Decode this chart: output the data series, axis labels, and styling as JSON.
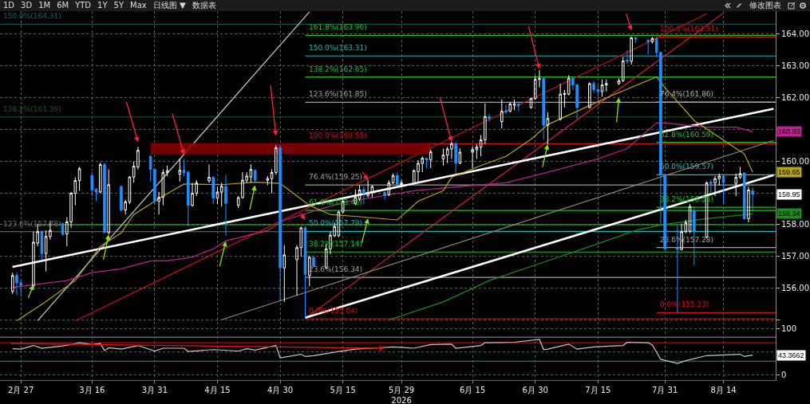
{
  "chart_data": [
    {
      "type": "other",
      "annotations": [
        "1D",
        "3D",
        "1M",
        "6M",
        "YTD",
        "1Y",
        "5Y",
        "Max",
        "日线图 ▼",
        "数据表",
        "修改图表"
      ]
    },
    {
      "type": "candlestick",
      "annotations": [
        "160.93",
        "159.65",
        "158.95",
        "158.34"
      ],
      "x": [
        "2026-02-25",
        "2026-02-26",
        "2026-02-27",
        "2026-03-02",
        "2026-03-03",
        "2026-03-04",
        "2026-03-05",
        "2026-03-06",
        "2026-03-09",
        "2026-03-10",
        "2026-03-11",
        "2026-03-12",
        "2026-03-13",
        "2026-03-16",
        "2026-03-17",
        "2026-03-18",
        "2026-03-19",
        "2026-03-20",
        "2026-03-23",
        "2026-03-24",
        "2026-03-25",
        "2026-03-26",
        "2026-03-27",
        "2026-03-30",
        "2026-03-31",
        "2026-04-01",
        "2026-04-02",
        "2026-04-03",
        "2026-04-06",
        "2026-04-07",
        "2026-04-08",
        "2026-04-09",
        "2026-04-10",
        "2026-04-13",
        "2026-04-14",
        "2026-04-15",
        "2026-04-16",
        "2026-04-17",
        "2026-04-20",
        "2026-04-21",
        "2026-04-22",
        "2026-04-23",
        "2026-04-24",
        "2026-04-27",
        "2026-04-28",
        "2026-04-29",
        "2026-04-30",
        "2026-05-01",
        "2026-05-04",
        "2026-05-05",
        "2026-05-06",
        "2026-05-07",
        "2026-05-08",
        "2026-05-11",
        "2026-05-12",
        "2026-05-13",
        "2026-05-14",
        "2026-05-15",
        "2026-05-18",
        "2026-05-19",
        "2026-05-20",
        "2026-05-21",
        "2026-05-22",
        "2026-05-25",
        "2026-05-26",
        "2026-05-27",
        "2026-05-28",
        "2026-05-29",
        "2026-06-01",
        "2026-06-02",
        "2026-06-03",
        "2026-06-04",
        "2026-06-05",
        "2026-06-08",
        "2026-06-09",
        "2026-06-10",
        "2026-06-11",
        "2026-06-12",
        "2026-06-15",
        "2026-06-16",
        "2026-06-17",
        "2026-06-18",
        "2026-06-19",
        "2026-06-22",
        "2026-06-23",
        "2026-06-24",
        "2026-06-25",
        "2026-06-26",
        "2026-06-29",
        "2026-06-30",
        "2026-07-01",
        "2026-07-02",
        "2026-07-03",
        "2026-07-06",
        "2026-07-07",
        "2026-07-08",
        "2026-07-09",
        "2026-07-10",
        "2026-07-13",
        "2026-07-14",
        "2026-07-15",
        "2026-07-16",
        "2026-07-17",
        "2026-07-20",
        "2026-07-21",
        "2026-07-22",
        "2026-07-23",
        "2026-07-24",
        "2026-07-27",
        "2026-07-28",
        "2026-07-29",
        "2026-07-30",
        "2026-07-31",
        "2026-08-03",
        "2026-08-04",
        "2026-08-05",
        "2026-08-06",
        "2026-08-07",
        "2026-08-10",
        "2026-08-11",
        "2026-08-12",
        "2026-08-13",
        "2026-08-14",
        "2026-08-17",
        "2026-08-18",
        "2026-08-19",
        "2026-08-20",
        "2026-08-21"
      ],
      "ohlc": [
        [
          155.9,
          156.49,
          155.82,
          156.4
        ],
        [
          156.4,
          156.49,
          155.78,
          156.17
        ],
        [
          156.17,
          156.24,
          155.74,
          156.09
        ],
        [
          156.07,
          157.78,
          156.03,
          157.45
        ],
        [
          157.42,
          158.03,
          157.32,
          157.78
        ],
        [
          157.78,
          157.82,
          156.9,
          157.09
        ],
        [
          157.09,
          157.82,
          156.53,
          157.63
        ],
        [
          157.63,
          158.11,
          157.53,
          157.82
        ],
        [
          158.03,
          158.07,
          157.65,
          157.7
        ],
        [
          157.71,
          158.24,
          157.32,
          158.09
        ],
        [
          158.09,
          159.03,
          157.9,
          158.99
        ],
        [
          158.99,
          159.49,
          158.61,
          159.39
        ],
        [
          159.39,
          159.82,
          159.07,
          159.76
        ],
        [
          159.55,
          159.65,
          158.9,
          159.09
        ],
        [
          159.11,
          159.15,
          158.74,
          159.03
        ],
        [
          159.03,
          159.95,
          158.99,
          159.89
        ],
        [
          159.89,
          159.95,
          157.74,
          157.75
        ],
        [
          157.75,
          159.74,
          157.7,
          159.26
        ],
        [
          159.2,
          159.24,
          158.4,
          158.46
        ],
        [
          158.46,
          158.78,
          158.32,
          158.72
        ],
        [
          158.72,
          159.53,
          158.65,
          159.5
        ],
        [
          159.5,
          159.99,
          159.32,
          159.84
        ],
        [
          159.82,
          160.45,
          159.74,
          160.34
        ],
        [
          160.15,
          160.2,
          159.36,
          159.74
        ],
        [
          159.74,
          159.78,
          158.65,
          158.74
        ],
        [
          158.74,
          159.03,
          158.32,
          158.86
        ],
        [
          158.86,
          159.74,
          158.61,
          159.64
        ],
        [
          159.64,
          159.86,
          159.53,
          159.7
        ],
        [
          159.59,
          160.07,
          159.36,
          159.71
        ],
        [
          159.71,
          160.07,
          159.53,
          159.64
        ],
        [
          159.65,
          159.7,
          157.95,
          158.61
        ],
        [
          158.61,
          159.32,
          158.57,
          158.99
        ],
        [
          158.99,
          159.4,
          158.9,
          159.32
        ],
        [
          159.38,
          159.89,
          159.32,
          159.49
        ],
        [
          159.49,
          159.53,
          158.65,
          158.84
        ],
        [
          158.84,
          159.2,
          158.65,
          159.03
        ],
        [
          159.03,
          159.32,
          158.57,
          159.21
        ],
        [
          159.21,
          159.57,
          157.65,
          158.67
        ],
        [
          158.61,
          158.9,
          158.53,
          158.85
        ],
        [
          158.85,
          159.65,
          158.82,
          159.4
        ],
        [
          159.4,
          159.65,
          159.32,
          159.53
        ],
        [
          159.5,
          159.9,
          159.32,
          159.74
        ],
        [
          159.71,
          159.74,
          159.32,
          159.4
        ],
        [
          159.4,
          159.53,
          159.24,
          159.45
        ],
        [
          159.45,
          159.74,
          158.99,
          159.64
        ],
        [
          159.64,
          160.5,
          159.57,
          160.42
        ],
        [
          160.42,
          160.5,
          155.61,
          156.64
        ],
        [
          156.64,
          157.36,
          155.57,
          157.05
        ],
        [
          156.9,
          157.36,
          155.78,
          157.28
        ],
        [
          157.28,
          157.94,
          156.99,
          157.9
        ],
        [
          157.9,
          157.94,
          155.04,
          156.44
        ],
        [
          156.4,
          157.03,
          156.07,
          156.97
        ],
        [
          156.97,
          157.03,
          156.65,
          156.7
        ],
        [
          156.64,
          157.4,
          156.61,
          157.24
        ],
        [
          157.24,
          157.78,
          157.07,
          157.67
        ],
        [
          157.65,
          158.07,
          157.61,
          157.94
        ],
        [
          157.65,
          158.44,
          157.61,
          158.4
        ],
        [
          158.4,
          158.86,
          158.36,
          158.74
        ],
        [
          158.67,
          159.11,
          158.61,
          158.86
        ],
        [
          158.82,
          159.24,
          158.74,
          159.09
        ],
        [
          159.11,
          159.2,
          158.65,
          158.99
        ],
        [
          158.92,
          159.4,
          158.86,
          159.0
        ],
        [
          159.0,
          159.24,
          158.86,
          159.2
        ],
        [
          159.01,
          159.07,
          158.78,
          158.92
        ],
        [
          158.94,
          159.4,
          158.9,
          159.32
        ],
        [
          159.32,
          159.61,
          159.28,
          159.55
        ],
        [
          159.55,
          159.65,
          159.24,
          159.28
        ],
        [
          159.26,
          159.4,
          159.17,
          159.32
        ],
        [
          159.3,
          159.74,
          159.26,
          159.7
        ],
        [
          159.67,
          160.03,
          159.32,
          159.93
        ],
        [
          159.93,
          160.15,
          159.65,
          160.09
        ],
        [
          160.09,
          160.11,
          159.78,
          160.04
        ],
        [
          160.04,
          160.36,
          159.78,
          160.29
        ],
        [
          160.07,
          160.4,
          159.86,
          160.19
        ],
        [
          160.19,
          160.45,
          159.94,
          160.38
        ],
        [
          160.38,
          160.61,
          160.07,
          160.55
        ],
        [
          160.55,
          160.59,
          159.61,
          159.94
        ],
        [
          159.94,
          160.4,
          159.9,
          160.28
        ],
        [
          160.28,
          160.45,
          159.78,
          160.36
        ],
        [
          160.36,
          160.53,
          160.07,
          160.44
        ],
        [
          160.44,
          160.82,
          160.15,
          160.67
        ],
        [
          160.67,
          161.82,
          160.53,
          161.4
        ],
        [
          161.4,
          161.48,
          161.24,
          161.34
        ],
        [
          161.24,
          161.94,
          161.03,
          161.57
        ],
        [
          161.59,
          161.78,
          161.48,
          161.55
        ],
        [
          161.57,
          161.86,
          161.53,
          161.8
        ],
        [
          161.76,
          161.94,
          161.61,
          161.8
        ],
        [
          161.8,
          161.82,
          161.57,
          161.75
        ],
        [
          161.69,
          162.0,
          161.65,
          161.97
        ],
        [
          161.97,
          162.68,
          161.92,
          162.57
        ],
        [
          162.57,
          162.86,
          162.32,
          162.6
        ],
        [
          162.6,
          162.65,
          160.69,
          161.13
        ],
        [
          161.13,
          161.54,
          160.53,
          161.34
        ],
        [
          161.32,
          162.44,
          161.28,
          162.11
        ],
        [
          162.1,
          162.24,
          161.69,
          162.13
        ],
        [
          162.11,
          162.7,
          162.07,
          162.61
        ],
        [
          162.61,
          162.65,
          162.24,
          162.4
        ],
        [
          162.4,
          162.44,
          161.32,
          161.69
        ],
        [
          161.69,
          162.48,
          161.65,
          162.44
        ],
        [
          162.44,
          162.53,
          162.15,
          162.25
        ],
        [
          162.25,
          162.4,
          161.82,
          162.19
        ],
        [
          162.19,
          162.57,
          162.03,
          162.4
        ],
        [
          162.4,
          162.57,
          162.19,
          162.44
        ],
        [
          162.44,
          162.61,
          162.4,
          162.53
        ],
        [
          162.53,
          163.28,
          162.49,
          163.15
        ],
        [
          163.18,
          163.49,
          163.07,
          163.14
        ],
        [
          163.15,
          163.91,
          163.04,
          163.88
        ],
        [
          163.88,
          163.91,
          163.73,
          163.84
        ],
        [
          163.8,
          163.84,
          163.36,
          163.76
        ],
        [
          163.76,
          163.9,
          163.7,
          163.86
        ],
        [
          163.86,
          163.9,
          163.28,
          163.42
        ],
        [
          163.42,
          163.44,
          158.03,
          159.57
        ],
        [
          159.57,
          159.6,
          157.22,
          157.23
        ],
        [
          157.27,
          157.97,
          155.23,
          157.22
        ],
        [
          157.22,
          158.03,
          157.19,
          157.78
        ],
        [
          157.78,
          158.15,
          157.73,
          158.07
        ],
        [
          157.8,
          158.65,
          157.73,
          158.57
        ],
        [
          158.44,
          158.57,
          156.73,
          157.8
        ],
        [
          157.61,
          159.36,
          157.57,
          159.32
        ],
        [
          159.34,
          159.4,
          158.99,
          159.3
        ],
        [
          159.32,
          159.53,
          158.9,
          159.45
        ],
        [
          159.45,
          159.61,
          159.24,
          159.53
        ],
        [
          159.53,
          159.57,
          158.65,
          159.32
        ],
        [
          159.3,
          159.61,
          158.9,
          159.49
        ],
        [
          159.49,
          159.82,
          159.44,
          159.61
        ],
        [
          159.63,
          159.65,
          158.15,
          158.19
        ],
        [
          158.19,
          159.2,
          158.07,
          159.09
        ],
        [
          159.07,
          159.17,
          158.4,
          158.95
        ]
      ],
      "colors": [
        "#ffffff",
        "#1e90ff",
        "#1e90ff",
        "#ffffff",
        "#ffffff",
        "#1e90ff",
        "#ffffff",
        "#ffffff",
        "#1e90ff",
        "#ffffff",
        "#ffffff",
        "#ffffff",
        "#ffffff",
        "#1e90ff",
        "#1e90ff",
        "#ffffff",
        "#1e90ff",
        "#ffffff",
        "#1e90ff",
        "#ffffff",
        "#ffffff",
        "#ffffff",
        "#ffffff",
        "#1e90ff",
        "#1e90ff",
        "#ffffff",
        "#ffffff",
        "#ffffff",
        "#ffffff",
        "#1e90ff",
        "#1e90ff",
        "#ffffff",
        "#ffffff",
        "#ffffff",
        "#1e90ff",
        "#ffffff",
        "#ffffff",
        "#1e90ff",
        "#ffffff",
        "#ffffff",
        "#ffffff",
        "#ffffff",
        "#1e90ff",
        "#ffffff",
        "#ffffff",
        "#ffffff",
        "#1e90ff",
        "#ffffff",
        "#ffffff",
        "#ffffff",
        "#1e90ff",
        "#ffffff",
        "#1e90ff",
        "#ffffff",
        "#ffffff",
        "#ffffff",
        "#ffffff",
        "#ffffff",
        "#ffffff",
        "#ffffff",
        "#1e90ff",
        "#ffffff",
        "#ffffff",
        "#1e90ff",
        "#ffffff",
        "#ffffff",
        "#1e90ff",
        "#ffffff",
        "#ffffff",
        "#ffffff",
        "#ffffff",
        "#1e90ff",
        "#ffffff",
        "#ffffff",
        "#ffffff",
        "#ffffff",
        "#1e90ff",
        "#ffffff",
        "#ffffff",
        "#ffffff",
        "#ffffff",
        "#ffffff",
        "#1e90ff",
        "#ffffff",
        "#1e90ff",
        "#ffffff",
        "#ffffff",
        "#1e90ff",
        "#ffffff",
        "#ffffff",
        "#ffffff",
        "#1e90ff",
        "#ffffff",
        "#ffffff",
        "#ffffff",
        "#ffffff",
        "#1e90ff",
        "#1e90ff",
        "#ffffff",
        "#1e90ff",
        "#1e90ff",
        "#ffffff",
        "#ffffff",
        "#ffffff",
        "#ffffff",
        "#1e90ff",
        "#ffffff",
        "#1e90ff",
        "#1e90ff",
        "#ffffff",
        "#1e90ff",
        "#1e90ff",
        "#1e90ff",
        "#1e90ff",
        "#ffffff",
        "#ffffff",
        "#ffffff",
        "#1e90ff",
        "#ffffff",
        "#1e90ff",
        "#ffffff",
        "#ffffff",
        "#1e90ff",
        "#ffffff",
        "#ffffff",
        "#1e90ff",
        "#ffffff",
        "#1e90ff"
      ],
      "series": [
        {
          "type": "line",
          "color": "#8b0000",
          "x": [
            "2026-03-30",
            "2026-06-05"
          ],
          "values": [
            160.55,
            160.55
          ],
          "lower": [
            160.22,
            160.22
          ],
          "upper": [
            160.55,
            160.55
          ]
        },
        {
          "type": "line",
          "color": "#b5a41a",
          "x": [
            "2026-02-26",
            "2026-03-04",
            "2026-03-12",
            "2026-03-18",
            "2026-03-23",
            "2026-03-26",
            "2026-04-02",
            "2026-04-07",
            "2026-04-16",
            "2026-04-24",
            "2026-04-30",
            "2026-05-04",
            "2026-05-07",
            "2026-05-12",
            "2026-05-19",
            "2026-05-28",
            "2026-06-02",
            "2026-06-08",
            "2026-06-10",
            "2026-06-17",
            "2026-06-23",
            "2026-06-29",
            "2026-07-03",
            "2026-07-17",
            "2026-07-29",
            "2026-07-31",
            "2026-08-07",
            "2026-08-17",
            "2026-08-19",
            "2026-08-21"
          ],
          "values": [
            154.98,
            155.49,
            156.24,
            157.32,
            157.74,
            158.32,
            158.9,
            159.28,
            159.26,
            159.34,
            159.3,
            158.9,
            158.61,
            158.32,
            158.25,
            158.15,
            158.74,
            159.07,
            159.49,
            159.86,
            160.15,
            160.69,
            161.15,
            161.99,
            162.65,
            162.32,
            161.28,
            160.4,
            160.23,
            159.65
          ]
        },
        {
          "type": "line",
          "color": "#c0208f",
          "x": [
            "2026-02-25",
            "2026-03-10",
            "2026-03-16",
            "2026-03-23",
            "2026-03-30",
            "2026-04-03",
            "2026-04-09",
            "2026-04-14",
            "2026-04-17",
            "2026-04-27",
            "2026-05-01",
            "2026-05-15",
            "2026-06-01",
            "2026-06-12",
            "2026-06-23",
            "2026-07-03",
            "2026-07-15",
            "2026-07-22",
            "2026-07-29",
            "2026-07-31",
            "2026-08-10",
            "2026-08-17",
            "2026-08-21"
          ],
          "values": [
            156.03,
            156.24,
            156.49,
            156.61,
            156.86,
            156.86,
            156.98,
            157.24,
            157.49,
            157.82,
            158.15,
            158.7,
            159.07,
            159.2,
            159.32,
            159.65,
            160.07,
            160.4,
            161.2,
            161.2,
            161.07,
            161.07,
            160.93
          ]
        },
        {
          "type": "line",
          "color": "#1e8b1e",
          "x": [
            "2026-05-26",
            "2026-06-08",
            "2026-06-19",
            "2026-07-02",
            "2026-07-15",
            "2026-07-24",
            "2026-07-30",
            "2026-08-10",
            "2026-08-21"
          ],
          "values": [
            155.0,
            155.57,
            156.24,
            156.82,
            157.4,
            157.82,
            157.99,
            158.19,
            158.34
          ]
        },
        {
          "type": "line",
          "color": "#ffffff",
          "x": [
            "2026-02-25",
            "2026-08-26"
          ],
          "values": [
            156.67,
            161.65
          ]
        },
        {
          "type": "line",
          "color": "#ffffff",
          "x": [
            "2026-05-06",
            "2026-08-26"
          ],
          "values": [
            155.07,
            159.56
          ]
        },
        {
          "type": "line",
          "color": "#8c8c6c",
          "x": [
            "2026-04-16",
            "2026-08-26"
          ],
          "values": [
            155.01,
            160.65
          ]
        },
        {
          "type": "line",
          "color": "#c8c8c8",
          "x": [
            "2026-03-03",
            "2026-05-07"
          ],
          "values": [
            154.98,
            164.7
          ]
        },
        {
          "type": "line",
          "color": "#cc1010",
          "x": [
            "2026-03-12",
            "2026-08-10"
          ],
          "values": [
            154.97,
            164.64
          ]
        },
        {
          "type": "line",
          "color": "#e02030",
          "x": [
            "2026-05-06",
            "2026-08-14"
          ],
          "values": [
            155.05,
            164.66
          ]
        },
        {
          "type": "line",
          "color": "#20d020",
          "x": [
            "2026-03-03",
            "2026-08-26T12:00"
          ],
          "values": [
            158.0,
            158.0
          ]
        },
        {
          "type": "line",
          "name": "0.0%(155.04)",
          "color": "#d01010",
          "x": [
            "2026-05-06",
            "2026-08-26T12:00"
          ],
          "values": [
            155.04,
            155.04
          ]
        },
        {
          "type": "line",
          "name": "23.6%(156.34)",
          "color": "#a0a0a0",
          "x": [
            "2026-05-06",
            "2026-08-26T12:00"
          ],
          "values": [
            156.34,
            156.34
          ]
        },
        {
          "type": "line",
          "name": "38.2%(157.14)",
          "color": "#20c020",
          "x": [
            "2026-05-06",
            "2026-08-26T12:00"
          ],
          "values": [
            157.14,
            157.14
          ]
        },
        {
          "type": "line",
          "name": "50.0%(157.79)",
          "color": "#20b0b0",
          "x": [
            "2026-05-06",
            "2026-08-26T12:00"
          ],
          "values": [
            157.79,
            157.79
          ]
        },
        {
          "type": "line",
          "name": "61.8%(158.45)",
          "color": "#20c020",
          "x": [
            "2026-05-06",
            "2026-08-26T12:00"
          ],
          "values": [
            158.45,
            158.45
          ]
        },
        {
          "type": "line",
          "name": "76.4%(159.25)",
          "color": "#a0a0a0",
          "x": [
            "2026-05-06",
            "2026-08-26T12:00"
          ],
          "values": [
            159.25,
            159.25
          ]
        },
        {
          "type": "line",
          "name": "100.0%(160.55)",
          "color": "#d01010",
          "x": [
            "2026-05-06",
            "2026-08-26T12:00"
          ],
          "values": [
            160.55,
            160.55
          ]
        },
        {
          "type": "line",
          "name": "123.6%(161.85)",
          "color": "#a0a0a0",
          "x": [
            "2026-05-06",
            "2026-08-26T12:00"
          ],
          "values": [
            161.85,
            161.85
          ]
        },
        {
          "type": "line",
          "name": "138.2%(162.65)",
          "color": "#20c020",
          "x": [
            "2026-05-06",
            "2026-08-26T12:00"
          ],
          "values": [
            162.65,
            162.65
          ]
        },
        {
          "type": "line",
          "name": "150.0%(163.31)",
          "color": "#20b0b0",
          "x": [
            "2026-05-06",
            "2026-08-26T12:00"
          ],
          "values": [
            163.31,
            163.31
          ]
        },
        {
          "type": "line",
          "name": "161.8%(163.96)",
          "color": "#20c020",
          "x": [
            "2026-05-06",
            "2026-08-26T12:00"
          ],
          "values": [
            163.96,
            163.96
          ]
        },
        {
          "type": "line",
          "name": "0.0%(155.23)",
          "color": "#d01010",
          "x": [
            "2026-07-29",
            "2026-08-26T12:00"
          ],
          "values": [
            155.23,
            155.23
          ]
        },
        {
          "type": "line",
          "name": "23.6%(157.28)",
          "color": "#a0a0a0",
          "x": [
            "2026-07-29",
            "2026-08-26T12:00"
          ],
          "values": [
            157.28,
            157.28
          ]
        },
        {
          "type": "line",
          "name": "38.2%(158.55)",
          "color": "#20c020",
          "x": [
            "2026-07-29",
            "2026-08-26T12:00"
          ],
          "values": [
            158.55,
            158.55
          ]
        },
        {
          "type": "line",
          "name": "50.0%(159.57)",
          "color": "#20c0c0",
          "x": [
            "2026-07-29",
            "2026-08-26T12:00"
          ],
          "values": [
            159.57,
            159.57
          ]
        },
        {
          "type": "line",
          "name": "61.8%(160.59)",
          "color": "#20c020",
          "x": [
            "2026-07-29",
            "2026-08-26T12:00"
          ],
          "values": [
            160.59,
            160.59
          ]
        },
        {
          "type": "line",
          "name": "76.4%(161.86)",
          "color": "#b0b0b0",
          "x": [
            "2026-07-29",
            "2026-08-26T12:00"
          ],
          "values": [
            161.86,
            161.86
          ]
        },
        {
          "type": "line",
          "name": "100.0%(163.91)",
          "color": "#d01010",
          "x": [
            "2026-07-29",
            "2026-08-26T12:00"
          ],
          "values": [
            163.91,
            163.91
          ]
        }
      ],
      "xlim": [
        "2026-02-22",
        "2026-08-26T12:00"
      ],
      "xticks": [
        {
          "value": "2026-02-27",
          "label": null
        },
        {
          "value": "2026-03-16",
          "label": null
        },
        {
          "value": "2026-03-31",
          "label": null
        },
        {
          "value": "2026-04-15",
          "label": null
        },
        {
          "value": "2026-04-30",
          "label": null
        },
        {
          "value": "2026-05-15",
          "label": null
        },
        {
          "value": "2026-05-29",
          "label": null
        },
        {
          "value": "2026-06-15",
          "label": null
        },
        {
          "value": "2026-06-30",
          "label": null
        },
        {
          "value": "2026-07-15",
          "label": null
        },
        {
          "value": "2026-07-31",
          "label": null
        },
        {
          "value": "2026-08-14",
          "label": null
        }
      ],
      "ylim": [
        154.94,
        164.72
      ],
      "yticks": [
        {
          "value": 164,
          "label": "164.00"
        },
        {
          "value": 163,
          "label": "163.00"
        },
        {
          "value": 162,
          "label": "162.00"
        },
        {
          "value": 161,
          "label": null
        },
        {
          "value": 160,
          "label": "160.00"
        },
        {
          "value": 159,
          "label": null
        },
        {
          "value": 158,
          "label": "158.00"
        },
        {
          "value": 157,
          "label": "157.00"
        },
        {
          "value": 156,
          "label": "156.00"
        },
        {
          "value": 155,
          "label": null
        }
      ],
      "grid": true,
      "tick_labels": "y",
      "ref_lines": [
        {
          "axis": "y",
          "value": 164.31,
          "label": "150.0%(164.31)",
          "color": "#1f5f5f"
        },
        {
          "axis": "y",
          "value": 161.39,
          "label": "138.2%(161.39)",
          "color": "#1e5a1e"
        },
        {
          "axis": "y",
          "value": 157.78,
          "label": "123.6%(157.78)",
          "color": "#707070"
        }
      ]
    },
    {
      "type": "line",
      "annotations": [
        "43.3662"
      ],
      "series": [
        {
          "color": "#c8c8c8",
          "x": [
            "2026-02-25",
            "2026-02-27",
            "2026-03-02",
            "2026-03-04",
            "2026-03-09",
            "2026-03-12",
            "2026-03-13",
            "2026-03-16",
            "2026-03-18",
            "2026-03-19",
            "2026-03-20",
            "2026-03-23",
            "2026-03-27",
            "2026-03-31",
            "2026-04-02",
            "2026-04-07",
            "2026-04-08",
            "2026-04-14",
            "2026-04-20",
            "2026-04-22",
            "2026-04-24",
            "2026-04-29",
            "2026-04-30",
            "2026-05-05",
            "2026-05-06",
            "2026-05-08",
            "2026-05-14",
            "2026-05-18",
            "2026-05-22",
            "2026-05-27",
            "2026-06-01",
            "2026-06-05",
            "2026-06-10",
            "2026-06-11",
            "2026-06-17",
            "2026-06-18",
            "2026-06-25",
            "2026-07-01",
            "2026-07-02",
            "2026-07-03",
            "2026-07-08",
            "2026-07-10",
            "2026-07-14",
            "2026-07-21",
            "2026-07-22",
            "2026-07-27",
            "2026-07-28",
            "2026-07-30",
            "2026-08-03",
            "2026-08-05",
            "2026-08-10",
            "2026-08-18",
            "2026-08-19",
            "2026-08-21"
          ],
          "values": [
            57,
            56,
            64,
            58,
            63,
            68,
            70,
            66,
            68,
            53,
            59,
            56,
            64,
            52,
            58,
            58,
            51,
            55,
            52,
            57,
            54,
            64,
            37,
            45,
            40,
            42,
            51,
            56,
            58,
            61,
            58,
            66,
            67,
            58,
            64,
            70,
            71,
            77,
            55,
            56,
            67,
            56,
            61,
            64,
            71,
            70,
            65,
            34,
            25,
            31,
            42,
            45,
            40,
            43
          ]
        }
      ],
      "xlim": [
        "2026-02-22",
        "2026-08-26T12:00"
      ],
      "xticks": [
        {
          "value": "2026-02-27",
          "label": "2月 27"
        },
        {
          "value": "2026-03-16",
          "label": "3月 16"
        },
        {
          "value": "2026-03-31",
          "label": "3月 31"
        },
        {
          "value": "2026-04-15",
          "label": "4月 15"
        },
        {
          "value": "2026-04-30",
          "label": "4月 30"
        },
        {
          "value": "2026-05-15",
          "label": "5月 15"
        },
        {
          "value": "2026-05-29",
          "label": "5月 29\n2026"
        },
        {
          "value": "2026-06-15",
          "label": "6月 15"
        },
        {
          "value": "2026-06-30",
          "label": "6月 30"
        },
        {
          "value": "2026-07-15",
          "label": "7月 15"
        },
        {
          "value": "2026-07-31",
          "label": "7月 31"
        },
        {
          "value": "2026-08-14",
          "label": "8月 14"
        }
      ],
      "ylim": [
        -11,
        115
      ],
      "yticks": [
        100,
        {
          "value": 50,
          "label": null
        },
        0
      ],
      "grid": true,
      "ref_lines": [
        {
          "axis": "y",
          "value": 82,
          "color": "#9a9a9a"
        },
        {
          "axis": "y",
          "value": 70,
          "color": "#d01010"
        },
        {
          "axis": "y",
          "value": 30,
          "color": "#10b010"
        }
      ]
    }
  ]
}
